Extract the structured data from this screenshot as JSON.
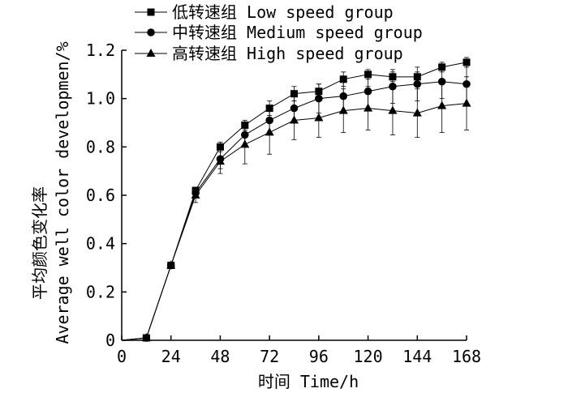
{
  "chart_data": {
    "type": "line",
    "title": "",
    "xlabel": "时间 Time/h",
    "ylabel_cn": "平均颜色变化率",
    "ylabel_en": "Average well color developmen/%",
    "xlim": [
      0,
      168
    ],
    "ylim": [
      0,
      1.2
    ],
    "xticks": [
      0,
      24,
      48,
      72,
      96,
      120,
      144,
      168
    ],
    "xtick_labels": [
      "0",
      "24",
      "48",
      "72",
      "96",
      "120",
      "144",
      "168"
    ],
    "yticks": [
      0,
      0.2,
      0.4,
      0.6,
      0.8,
      1.0,
      1.2
    ],
    "ytick_labels": [
      "0",
      "0.2",
      "0.4",
      "0.6",
      "0.8",
      "1.0",
      "1.2"
    ],
    "grid": false,
    "legend_position": "top",
    "x": [
      12,
      24,
      36,
      48,
      60,
      72,
      84,
      96,
      108,
      120,
      132,
      144,
      156,
      168
    ],
    "series": [
      {
        "name": "低转速组 Low speed group",
        "marker": "square",
        "values": [
          0.01,
          0.31,
          0.62,
          0.8,
          0.89,
          0.96,
          1.02,
          1.03,
          1.08,
          1.1,
          1.09,
          1.09,
          1.13,
          1.15
        ],
        "errors": [
          0.005,
          0.01,
          0.01,
          0.02,
          0.02,
          0.03,
          0.03,
          0.03,
          0.03,
          0.02,
          0.02,
          0.02,
          0.02,
          0.02
        ]
      },
      {
        "name": "中转速组 Medium speed group",
        "marker": "circle",
        "values": [
          0.01,
          0.31,
          0.61,
          0.75,
          0.85,
          0.91,
          0.96,
          1.0,
          1.01,
          1.03,
          1.05,
          1.06,
          1.07,
          1.06
        ],
        "errors": [
          0.005,
          0.01,
          0.02,
          0.04,
          0.05,
          0.06,
          0.06,
          0.06,
          0.06,
          0.07,
          0.07,
          0.07,
          0.07,
          0.08
        ]
      },
      {
        "name": "高转速组 High speed group",
        "marker": "triangle",
        "values": [
          0.01,
          0.31,
          0.6,
          0.74,
          0.81,
          0.86,
          0.91,
          0.92,
          0.95,
          0.96,
          0.95,
          0.94,
          0.97,
          0.98
        ],
        "errors": [
          0.005,
          0.01,
          0.03,
          0.05,
          0.08,
          0.09,
          0.08,
          0.08,
          0.09,
          0.09,
          0.1,
          0.1,
          0.11,
          0.11
        ]
      }
    ]
  }
}
